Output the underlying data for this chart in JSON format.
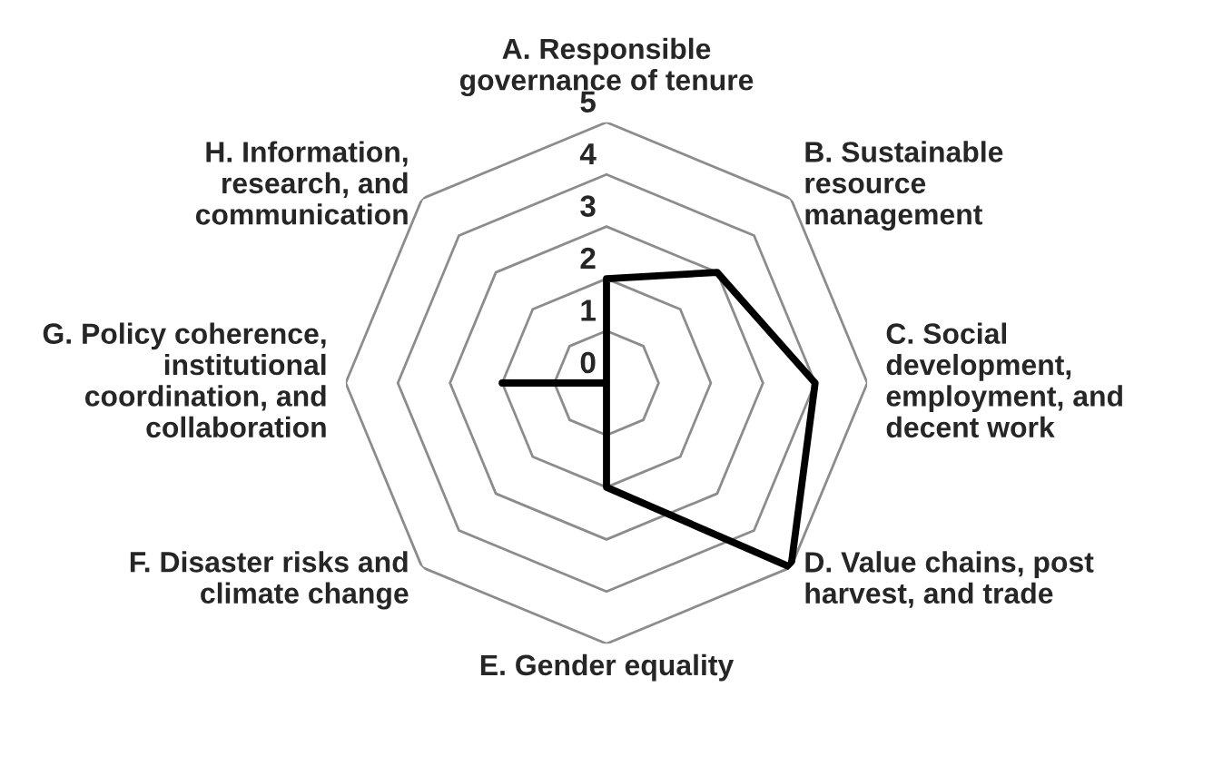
{
  "chart_data": {
    "type": "radar",
    "categories": [
      "A. Responsible\ngovernance of tenure",
      "B. Sustainable\nresource\nmanagement",
      "C. Social\ndevelopment,\nemployment, and\ndecent work",
      "D. Value chains, post\nharvest, and trade",
      "E. Gender equality",
      "F. Disaster risks and\nclimate change",
      "G. Policy coherence,\ninstitutional\ncoordination, and\ncollaboration",
      "H. Information,\nresearch, and\ncommunication"
    ],
    "series": [
      {
        "color": "#000000",
        "values": [
          2,
          3,
          4,
          5,
          2,
          0,
          2,
          0
        ]
      }
    ],
    "ylim": [
      0,
      5
    ],
    "yticks": [
      0,
      1,
      2,
      3,
      4,
      5
    ],
    "grid": true,
    "marker": "none",
    "line_style": "solid"
  }
}
